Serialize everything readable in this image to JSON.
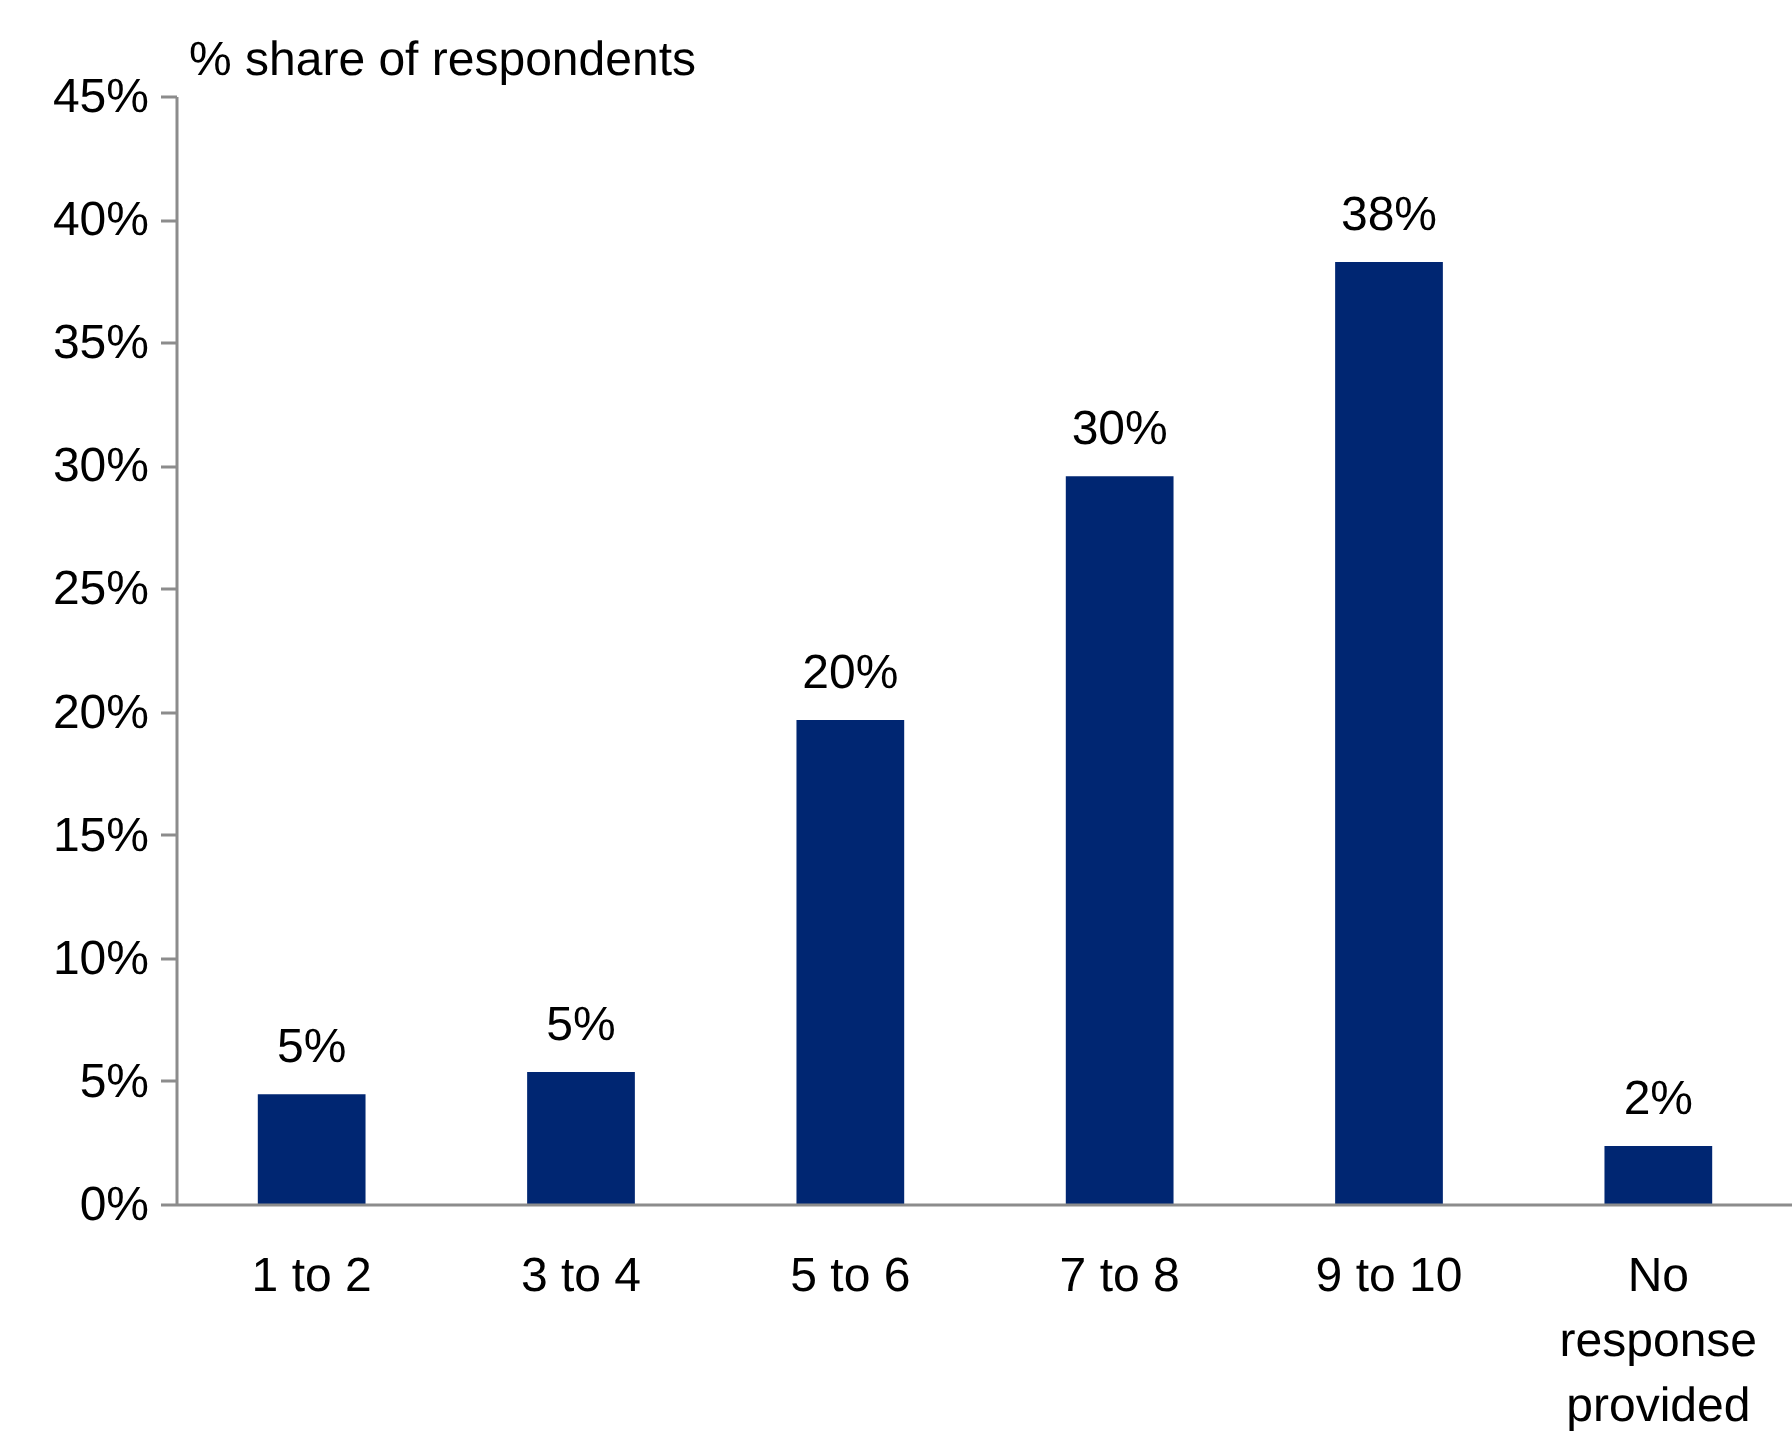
{
  "chart_data": {
    "type": "bar",
    "ylabel": "% share of respondents",
    "categories": [
      "1 to 2",
      "3 to 4",
      "5 to 6",
      "7 to 8",
      "9 to 10",
      "No response provided"
    ],
    "values": [
      4.5,
      5.4,
      19.7,
      29.6,
      38.3,
      2.4
    ],
    "value_labels": [
      "5%",
      "5%",
      "20%",
      "30%",
      "38%",
      "2%"
    ],
    "color": "#002672",
    "ylim": [
      0,
      45
    ],
    "yticks": [
      {
        "value": 0,
        "label": "0%"
      },
      {
        "value": 5,
        "label": "5%"
      },
      {
        "value": 10,
        "label": "10%"
      },
      {
        "value": 15,
        "label": "15%"
      },
      {
        "value": 20,
        "label": "20%"
      },
      {
        "value": 25,
        "label": "25%"
      },
      {
        "value": 30,
        "label": "30%"
      },
      {
        "value": 35,
        "label": "35%"
      },
      {
        "value": 40,
        "label": "40%"
      },
      {
        "value": 45,
        "label": "45%"
      }
    ]
  }
}
